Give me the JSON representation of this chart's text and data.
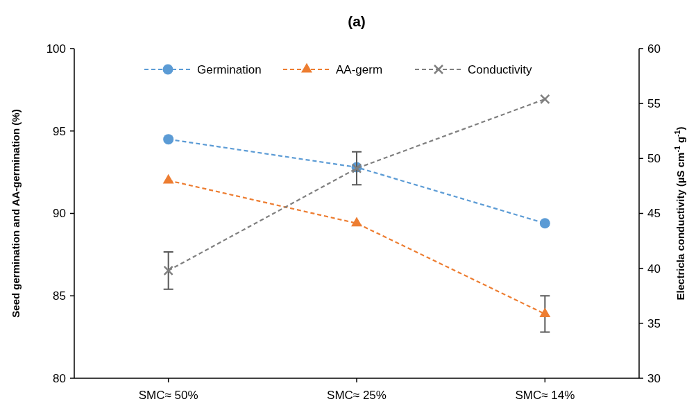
{
  "chart_data": {
    "type": "line",
    "title": "(a)",
    "ylabel": "Seed germination and AA-germination (%)",
    "y2label": "Electricla conductivity (µS cm$^{-1}$ g$^{-1}$)",
    "categories": [
      "SMC≈ 50%",
      "SMC≈ 25%",
      "SMC≈ 14%"
    ],
    "series": [
      {
        "name": "Germination",
        "color": "#5b9bd5",
        "marker": "circle",
        "values": [
          94.5,
          92.8,
          89.4
        ]
      },
      {
        "name": "AA-germ",
        "color": "#ed7d31",
        "marker": "triangle",
        "values": [
          92.0,
          89.4,
          83.9
        ],
        "errors": [
          null,
          null,
          1.1
        ]
      },
      {
        "name": "Conductivity",
        "color": "#7f7f7f",
        "marker": "cross",
        "axis": "y2",
        "values": [
          39.8,
          49.1,
          55.4
        ],
        "errors": [
          1.7,
          1.5,
          null
        ]
      }
    ],
    "ylim": [
      80,
      100
    ],
    "yticks": [
      80,
      85,
      90,
      95,
      100
    ],
    "y2lim": [
      30,
      60
    ],
    "y2ticks": [
      30,
      35,
      40,
      45,
      50,
      55,
      60
    ],
    "line_style": "dashed",
    "legend": "top",
    "grid": false
  }
}
